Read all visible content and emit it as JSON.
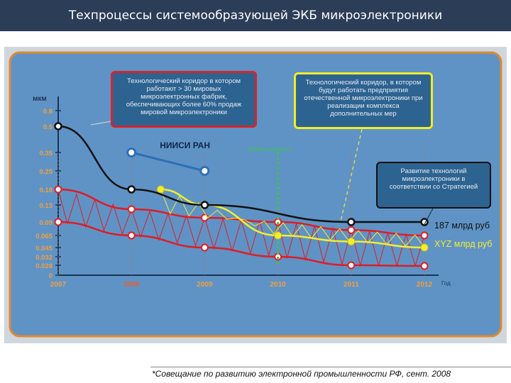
{
  "title": "Техпроцессы системообразующей ЭКБ микроэлектроники",
  "notes": {
    "corridor": "Технологический коридор в котором работают > 30 мировых микроэлектронных фабрик, обеспечивающих более 60% продаж мировой микроэлектроники",
    "future": "Технологический коридор, в котором будут работать предприятия отечественной микроэлектроники при реализации комплекса дополнительных мер",
    "strategy": "Развитие технологий микроэлектроники в соответствии со Стратегией",
    "niisi": "НИИСИ РАН",
    "green": "Рубеж мирового массового выпуска микроэлектроники"
  },
  "footnote": "*Совещание по развитию электронной промышленности РФ, сент. 2008",
  "colors": {
    "title_bg": "#2b3d57",
    "panel": "#cfd6de",
    "chart_bg": "#5f93c6",
    "frame": "#e08a2e",
    "red": "#e01c24",
    "yellow": "#f2ee2e",
    "black": "#111111",
    "niisi_blue": "#2f6fb5",
    "green": "#3cc83c",
    "axis_text": "#f0a040"
  },
  "chart_data": {
    "type": "line",
    "ylabel": "мкм",
    "xlabel": "Год",
    "y_ticks": [
      "0",
      "0.028",
      "0.032",
      "0.045",
      "0.065",
      "0.09",
      "0.13",
      "0.18",
      "0.25",
      "0.35",
      "0.5",
      "0.8"
    ],
    "x_ticks": [
      "2007",
      "2008",
      "2009",
      "2010",
      "2011",
      "2012"
    ],
    "highlight_year": "2008",
    "series": [
      {
        "key": "black",
        "x": [
          2007,
          2008,
          2009,
          2011,
          2012
        ],
        "y": [
          0.5,
          0.18,
          0.13,
          0.09,
          0.09
        ],
        "label": "187 млрд руб"
      },
      {
        "key": "yellow",
        "x": [
          2008.4,
          2009,
          2010,
          2011,
          2012
        ],
        "y": [
          0.18,
          0.13,
          0.065,
          0.055,
          0.045
        ],
        "label": "XYZ млрд руб"
      },
      {
        "key": "red_top",
        "x": [
          2007,
          2008,
          2009,
          2010,
          2011,
          2012
        ],
        "y": [
          0.18,
          0.12,
          0.1,
          0.09,
          0.075,
          0.065
        ]
      },
      {
        "key": "red_bottom",
        "x": [
          2007,
          2008,
          2009,
          2010,
          2011,
          2012
        ],
        "y": [
          0.09,
          0.065,
          0.045,
          0.032,
          0.028,
          0.026
        ]
      },
      {
        "key": "niisi",
        "x": [
          2008,
          2009
        ],
        "y": [
          0.35,
          0.25
        ],
        "label": "НИИСИ РАН"
      }
    ],
    "green_marker": {
      "x": 2010,
      "y": [
        0.35,
        0.028
      ]
    }
  }
}
